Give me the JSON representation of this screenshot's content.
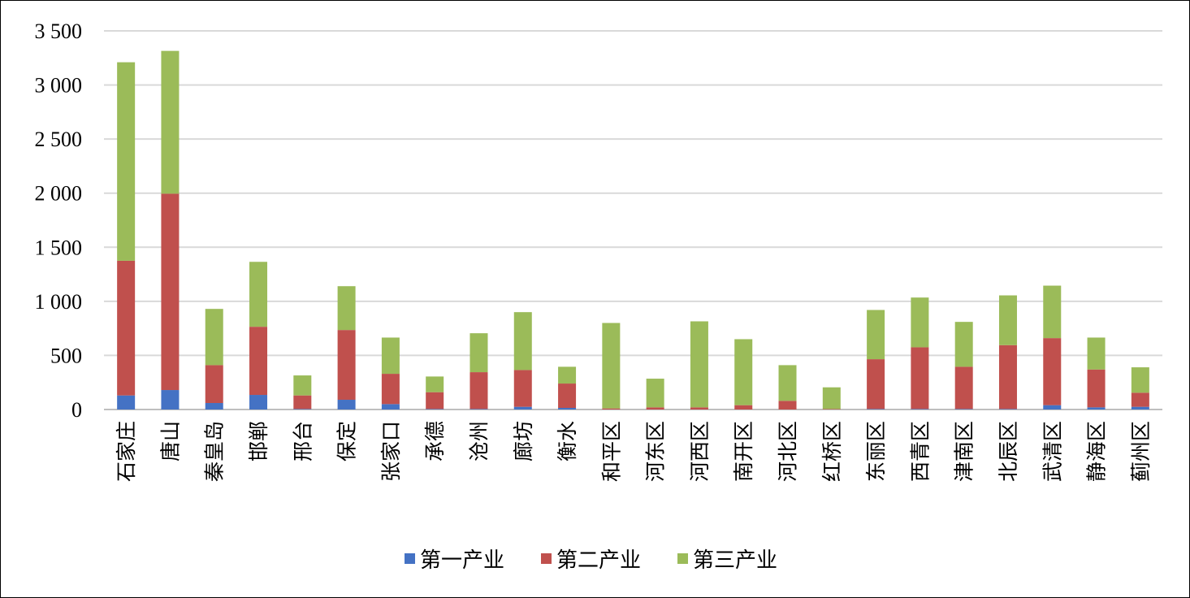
{
  "chart_data": {
    "type": "bar",
    "stacked": true,
    "categories": [
      "石家庄",
      "唐山",
      "秦皇岛",
      "邯郸",
      "邢台",
      "保定",
      "张家口",
      "承德",
      "沧州",
      "廊坊",
      "衡水",
      "和平区",
      "河东区",
      "河西区",
      "南开区",
      "河北区",
      "红桥区",
      "东丽区",
      "西青区",
      "津南区",
      "北辰区",
      "武清区",
      "静海区",
      "蓟州区"
    ],
    "series": [
      {
        "name": "第一产业",
        "color": "#4472C4",
        "values": [
          130,
          180,
          60,
          135,
          5,
          90,
          50,
          5,
          5,
          25,
          15,
          0,
          0,
          0,
          0,
          0,
          0,
          5,
          5,
          5,
          5,
          40,
          20,
          25
        ]
      },
      {
        "name": "第二产业",
        "color": "#C0504D",
        "values": [
          1245,
          1815,
          350,
          630,
          125,
          645,
          280,
          155,
          340,
          340,
          225,
          10,
          20,
          20,
          40,
          80,
          5,
          460,
          570,
          390,
          590,
          620,
          350,
          130
        ]
      },
      {
        "name": "第三产业",
        "color": "#9BBB59",
        "values": [
          1835,
          1320,
          520,
          600,
          185,
          405,
          335,
          145,
          360,
          535,
          155,
          790,
          265,
          795,
          610,
          330,
          200,
          455,
          460,
          415,
          460,
          485,
          295,
          235
        ]
      }
    ],
    "yticks": [
      "0",
      "500",
      "1 000",
      "1 500",
      "2 000",
      "2 500",
      "3 000",
      "3 500"
    ],
    "ylim": [
      0,
      3500
    ],
    "grid": true,
    "legend": "bottom"
  }
}
